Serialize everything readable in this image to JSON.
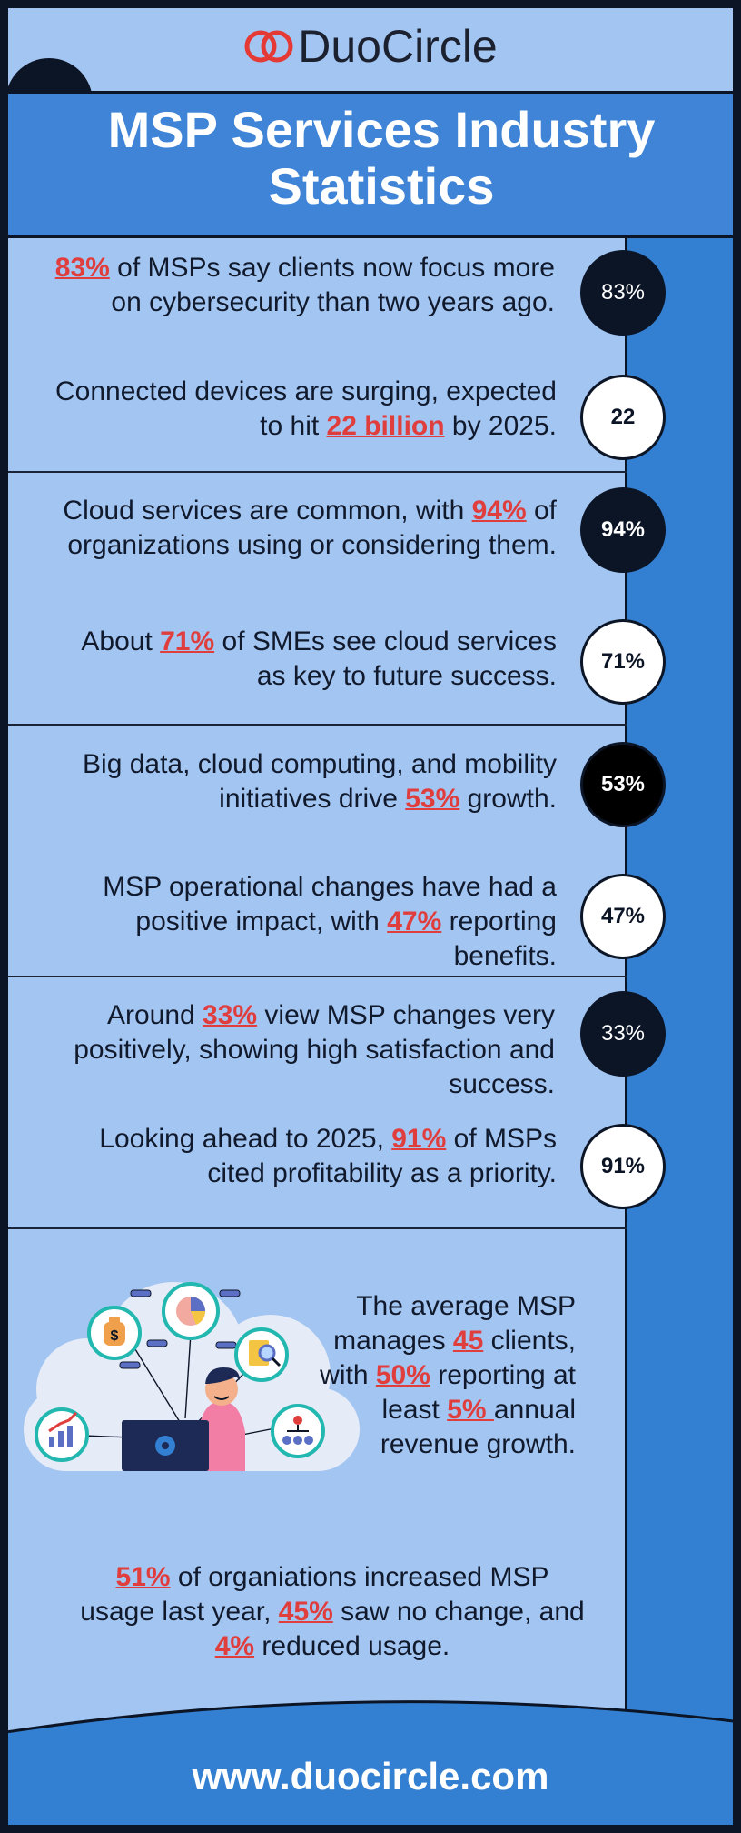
{
  "brand": {
    "logo_text": "DuoCircle",
    "accent": "#e03d3d"
  },
  "title": "MSP Services Industry Statistics",
  "stats": [
    {
      "pre": "",
      "hl": "83%",
      "post": " of MSPs say clients now focus more on cybersecurity than two years ago.",
      "badge": "83%"
    },
    {
      "pre": "Connected devices are surging, expected to hit ",
      "hl": "22 billion",
      "post": " by 2025.",
      "badge": "22"
    },
    {
      "pre": "Cloud services are common, with ",
      "hl": "94%",
      "post": " of organizations using or considering them.",
      "badge": "94%"
    },
    {
      "pre": "About ",
      "hl": "71%",
      "post": " of SMEs see cloud services as key to future success.",
      "badge": "71%"
    },
    {
      "pre": "Big data, cloud computing, and mobility initiatives drive ",
      "hl": "53%",
      "post": " growth.",
      "badge": "53%"
    },
    {
      "pre": "MSP operational changes have had a positive impact, with ",
      "hl": "47%",
      "post": " reporting benefits.",
      "badge": "47%"
    },
    {
      "pre": "Around ",
      "hl": "33%",
      "post": " view MSP changes very positively, showing high satisfaction and success.",
      "badge": "33%"
    },
    {
      "pre": "Looking ahead to 2025, ",
      "hl": "91%",
      "post": " of MSPs cited profitability as a priority.",
      "badge": "91%"
    }
  ],
  "average": {
    "p1": "The average MSP manages ",
    "h1": "45",
    "p2": " clients, with ",
    "h2": "50%",
    "p3": " reporting at least ",
    "h3": "5% ",
    "p4": "annual revenue growth."
  },
  "usage": {
    "h1": "51%",
    "p1": " of organiations increased MSP usage last year, ",
    "h2": "45%",
    "p2": " saw no change, and ",
    "h3": "4%",
    "p3": " reduced usage."
  },
  "illustration": {
    "dollar_symbol": "$"
  },
  "footer": {
    "url": "www.duocircle.com"
  }
}
